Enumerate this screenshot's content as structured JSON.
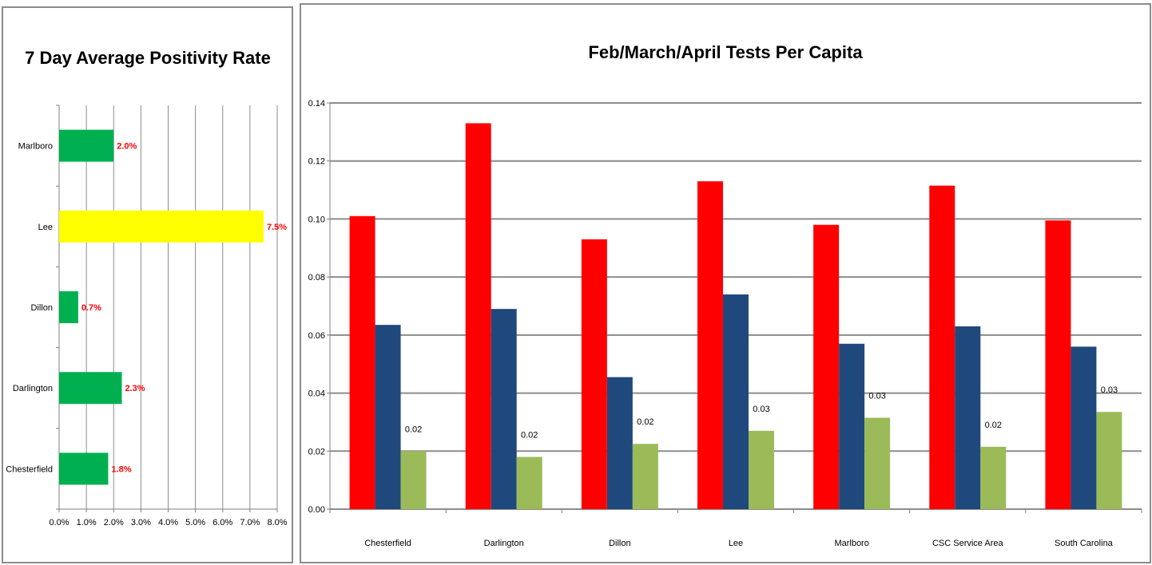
{
  "chart_data": [
    {
      "type": "bar",
      "orientation": "horizontal",
      "title": "7 Day Average Positivity Rate",
      "categories": [
        "Marlboro",
        "Lee",
        "Dillon",
        "Darlington",
        "Chesterfield"
      ],
      "values": [
        2.0,
        7.5,
        0.7,
        2.3,
        1.8
      ],
      "data_labels": [
        "2.0%",
        "7.5%",
        "0.7%",
        "2.3%",
        "1.8%"
      ],
      "bar_colors": [
        "#00b050",
        "#ffff00",
        "#00b050",
        "#00b050",
        "#00b050"
      ],
      "xlim": [
        0,
        8
      ],
      "x_ticks": [
        "0.0%",
        "1.0%",
        "2.0%",
        "3.0%",
        "4.0%",
        "5.0%",
        "6.0%",
        "7.0%",
        "8.0%"
      ],
      "grid": "vertical"
    },
    {
      "type": "bar",
      "title": "Feb/March/April Tests Per Capita",
      "categories": [
        "Chesterfield",
        "Darlington",
        "Dillon",
        "Lee",
        "Marlboro",
        "CSC Service Area",
        "South Carolina"
      ],
      "series": [
        {
          "color": "#ff0000",
          "values": [
            0.101,
            0.133,
            0.093,
            0.113,
            0.098,
            0.1115,
            0.0995
          ]
        },
        {
          "color": "#1f497d",
          "values": [
            0.0635,
            0.069,
            0.0455,
            0.074,
            0.057,
            0.063,
            0.056
          ]
        },
        {
          "color": "#9bbb59",
          "values": [
            0.02,
            0.018,
            0.0225,
            0.027,
            0.0315,
            0.0215,
            0.0335
          ],
          "data_labels": [
            "0.02",
            "0.02",
            "0.02",
            "0.03",
            "0.03",
            "0.02",
            "0.03"
          ]
        }
      ],
      "ylim": [
        0,
        0.14
      ],
      "y_ticks": [
        "0.00",
        "0.02",
        "0.04",
        "0.06",
        "0.08",
        "0.10",
        "0.12",
        "0.14"
      ],
      "grid": "horizontal"
    }
  ]
}
